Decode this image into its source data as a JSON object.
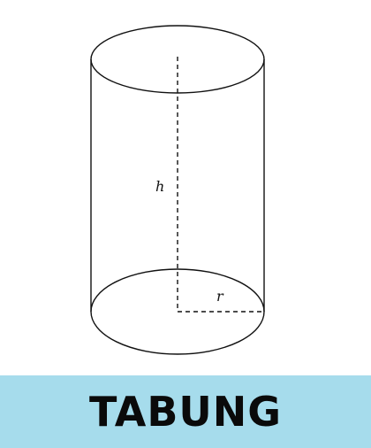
{
  "diagram": {
    "height_label": "h",
    "radius_label": "r"
  },
  "banner": {
    "title": "TABUNG",
    "background": "#a6dcec"
  }
}
